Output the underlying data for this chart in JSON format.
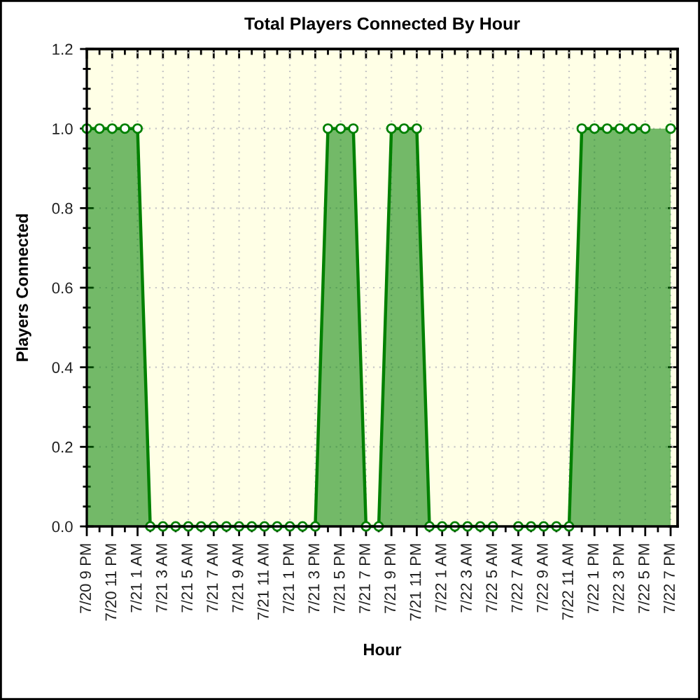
{
  "chart_data": {
    "type": "area",
    "title": "Total Players Connected By Hour",
    "xlabel": "Hour",
    "ylabel": "Players Connected",
    "categories": [
      "7/20 9 PM",
      null,
      "7/20 11 PM",
      null,
      "7/21 1 AM",
      null,
      "7/21 3 AM",
      null,
      "7/21 5 AM",
      null,
      "7/21 7 AM",
      null,
      "7/21 9 AM",
      null,
      "7/21 11 AM",
      null,
      "7/21 1 PM",
      null,
      "7/21 3 PM",
      null,
      "7/21 5 PM",
      null,
      "7/21 7 PM",
      null,
      "7/21 9 PM",
      null,
      "7/21 11 PM",
      null,
      "7/22 1 AM",
      null,
      "7/22 3 AM",
      null,
      "7/22 5 AM",
      null,
      "7/22 7 AM",
      null,
      "7/22 9 AM",
      null,
      "7/22 11 AM",
      null,
      "7/22 1 PM",
      null,
      "7/22 3 PM",
      null,
      "7/22 5 PM",
      null,
      "7/22 7 PM"
    ],
    "series": [
      {
        "color": "#008000",
        "values": [
          1,
          1,
          1,
          1,
          1,
          0,
          0,
          0,
          0,
          0,
          0,
          0,
          0,
          0,
          0,
          0,
          0,
          0,
          0,
          1,
          1,
          1,
          0,
          0,
          1,
          1,
          1,
          0,
          0,
          0,
          0,
          0,
          0,
          null,
          0,
          0,
          0,
          0,
          0,
          1,
          1,
          1,
          1,
          1,
          1,
          null,
          1
        ]
      }
    ],
    "ylim": [
      0,
      1.2
    ],
    "yticks": [
      {
        "value": 0,
        "label": "0.0"
      },
      0.2,
      0.4,
      0.6,
      0.8,
      {
        "value": 1,
        "label": "1.0"
      },
      1.2
    ],
    "grid": true,
    "marker": "circle",
    "line_style": "solid"
  }
}
